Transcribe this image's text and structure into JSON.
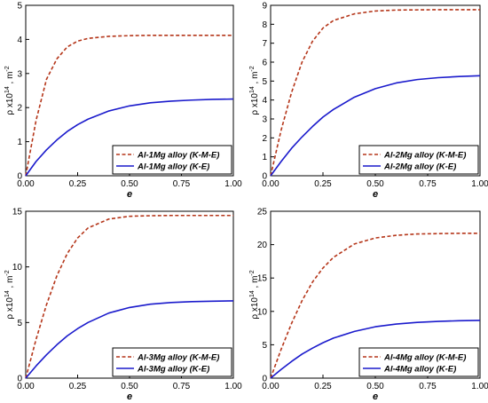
{
  "chart_data": [
    {
      "type": "line",
      "xlabel": "e",
      "ylabel": "ρ x10^14 , m^-2",
      "xlim": [
        0,
        1
      ],
      "ylim": [
        0,
        5
      ],
      "xticks": [
        "0.00",
        "0.25",
        "0.50",
        "0.75",
        "1.00"
      ],
      "yticks": [
        "0",
        "1",
        "2",
        "3",
        "4",
        "5"
      ],
      "legend_position": "bottom-right",
      "x": [
        0,
        0.05,
        0.1,
        0.15,
        0.2,
        0.25,
        0.3,
        0.4,
        0.5,
        0.6,
        0.7,
        0.8,
        0.9,
        1.0
      ],
      "series": [
        {
          "name": "Al-1Mg alloy (K-M-E)",
          "color": "#b5361a",
          "dash": "dashed",
          "values": [
            0,
            1.63,
            2.83,
            3.43,
            3.78,
            3.95,
            4.03,
            4.09,
            4.11,
            4.12,
            4.12,
            4.12,
            4.12,
            4.12
          ]
        },
        {
          "name": "Al-1Mg alloy (K-E)",
          "color": "#1a1acc",
          "dash": "solid",
          "values": [
            0,
            0.42,
            0.76,
            1.05,
            1.3,
            1.5,
            1.66,
            1.9,
            2.05,
            2.14,
            2.19,
            2.22,
            2.24,
            2.25
          ]
        }
      ]
    },
    {
      "type": "line",
      "xlabel": "e",
      "ylabel": "ρ x10^14 , m^-2",
      "xlim": [
        0,
        1
      ],
      "ylim": [
        0,
        9
      ],
      "xticks": [
        "0.00",
        "0.25",
        "0.50",
        "0.75",
        "1.00"
      ],
      "yticks": [
        "0",
        "1",
        "2",
        "3",
        "4",
        "5",
        "6",
        "7",
        "8",
        "9"
      ],
      "legend_position": "bottom-right",
      "x": [
        0,
        0.05,
        0.1,
        0.15,
        0.2,
        0.25,
        0.3,
        0.4,
        0.5,
        0.6,
        0.7,
        0.8,
        0.9,
        1.0
      ],
      "series": [
        {
          "name": "Al-2Mg alloy (K-M-E)",
          "color": "#b5361a",
          "dash": "dashed",
          "values": [
            0,
            2.4,
            4.4,
            6.0,
            7.1,
            7.8,
            8.2,
            8.55,
            8.7,
            8.75,
            8.76,
            8.77,
            8.77,
            8.77
          ]
        },
        {
          "name": "Al-2Mg alloy (K-E)",
          "color": "#1a1acc",
          "dash": "solid",
          "values": [
            0,
            0.75,
            1.45,
            2.05,
            2.6,
            3.1,
            3.5,
            4.15,
            4.6,
            4.9,
            5.08,
            5.18,
            5.24,
            5.28
          ]
        }
      ]
    },
    {
      "type": "line",
      "xlabel": "e",
      "ylabel": "ρ x10^14 , m^-2",
      "xlim": [
        0,
        1
      ],
      "ylim": [
        0,
        15
      ],
      "xticks": [
        "0.00",
        "0.25",
        "0.50",
        "0.75",
        "1.00"
      ],
      "yticks": [
        "0",
        "5",
        "10",
        "15"
      ],
      "legend_position": "bottom-right",
      "x": [
        0,
        0.05,
        0.1,
        0.15,
        0.2,
        0.25,
        0.3,
        0.4,
        0.5,
        0.6,
        0.7,
        0.8,
        0.9,
        1.0
      ],
      "series": [
        {
          "name": "Al-3Mg alloy (K-M-E)",
          "color": "#b5361a",
          "dash": "dashed",
          "values": [
            0,
            3.5,
            6.6,
            9.2,
            11.2,
            12.6,
            13.5,
            14.3,
            14.55,
            14.6,
            14.62,
            14.62,
            14.62,
            14.62
          ]
        },
        {
          "name": "Al-3Mg alloy (K-E)",
          "color": "#1a1acc",
          "dash": "solid",
          "values": [
            0,
            1.1,
            2.1,
            3.0,
            3.8,
            4.45,
            5.0,
            5.85,
            6.35,
            6.65,
            6.8,
            6.88,
            6.92,
            6.95
          ]
        }
      ]
    },
    {
      "type": "line",
      "xlabel": "e",
      "ylabel": "ρ x10^14 , m^-2",
      "xlim": [
        0,
        1
      ],
      "ylim": [
        0,
        25
      ],
      "xticks": [
        "0.00",
        "0.25",
        "0.50",
        "0.75",
        "1.00"
      ],
      "yticks": [
        "0",
        "5",
        "10",
        "15",
        "20",
        "25"
      ],
      "legend_position": "bottom-right",
      "x": [
        0,
        0.05,
        0.1,
        0.15,
        0.2,
        0.25,
        0.3,
        0.4,
        0.5,
        0.6,
        0.7,
        0.8,
        0.9,
        1.0
      ],
      "series": [
        {
          "name": "Al-4Mg alloy (K-M-E)",
          "color": "#b5361a",
          "dash": "dashed",
          "values": [
            0,
            4.3,
            8.2,
            11.6,
            14.4,
            16.5,
            18.1,
            20.1,
            21.0,
            21.4,
            21.6,
            21.65,
            21.7,
            21.7
          ]
        },
        {
          "name": "Al-4Mg alloy (K-E)",
          "color": "#1a1acc",
          "dash": "solid",
          "values": [
            0,
            1.3,
            2.5,
            3.6,
            4.5,
            5.3,
            6.0,
            7.0,
            7.7,
            8.1,
            8.35,
            8.5,
            8.6,
            8.65
          ]
        }
      ]
    }
  ]
}
